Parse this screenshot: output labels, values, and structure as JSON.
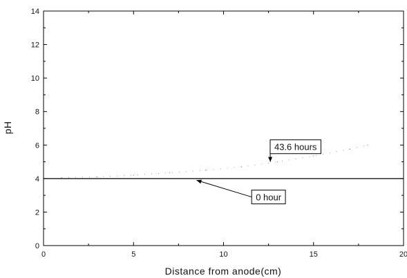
{
  "chart_data": {
    "type": "line",
    "title": "",
    "xlabel": "Distance from anode(cm)",
    "ylabel": "pH",
    "xlim": [
      0,
      20
    ],
    "ylim": [
      0,
      14
    ],
    "xticks": [
      0,
      5,
      10,
      15,
      20
    ],
    "yticks": [
      0,
      2,
      4,
      6,
      8,
      10,
      12,
      14
    ],
    "x_tick_labels": [
      "0",
      "5",
      "10",
      "15",
      "20"
    ],
    "y_tick_labels": [
      "0",
      "2",
      "4",
      "6",
      "8",
      "10",
      "12",
      "14"
    ],
    "grid": false,
    "legend": "none",
    "series": [
      {
        "style": "solid",
        "color": "#000000",
        "x": [
          0,
          20
        ],
        "y": [
          4.0,
          4.0
        ]
      },
      {
        "style": "dotted",
        "color": "#999999",
        "x": [
          1,
          3,
          5,
          7,
          9,
          11,
          13,
          15,
          17,
          18
        ],
        "y": [
          4.05,
          4.1,
          4.2,
          4.35,
          4.5,
          4.7,
          5.0,
          5.35,
          5.75,
          6.0
        ]
      }
    ],
    "annotations": [
      {
        "text": "43.6 hours",
        "box_x": 14,
        "box_y": 5.9,
        "arrow_to": [
          12.6,
          5.0
        ]
      },
      {
        "text": "0 hour",
        "box_x": 12.5,
        "box_y": 2.9,
        "arrow_to": [
          8.5,
          3.9
        ]
      }
    ]
  }
}
